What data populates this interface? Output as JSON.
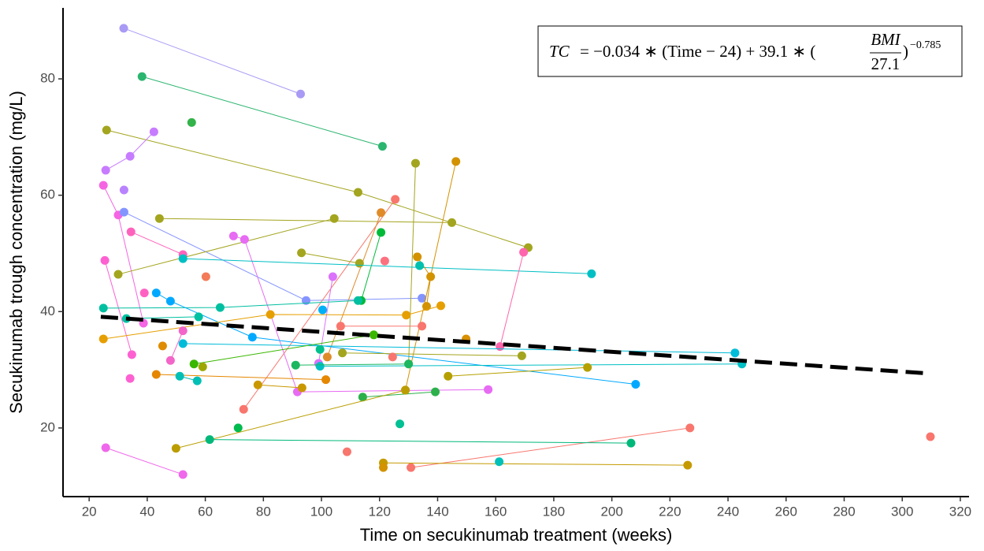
{
  "chart_data": {
    "type": "line",
    "x_label": "Time on secukinumab treatment (weeks)",
    "y_label": "Secukinumab trough concentration (mg/L)",
    "xlim": [
      11,
      323
    ],
    "ylim": [
      8.2,
      92.2
    ],
    "xticks": [
      20,
      40,
      60,
      80,
      100,
      120,
      140,
      160,
      180,
      200,
      220,
      240,
      260,
      280,
      300,
      320
    ],
    "yticks": [
      20,
      40,
      60,
      80
    ],
    "grid": false,
    "annotation": {
      "lhs": "TC",
      "rhs": "= −0.034 ∗ (Time − 24) + 39.1  ∗ (",
      "numerator": "BMI",
      "denominator": "27.1",
      "close": ")",
      "exponent": "−0.785"
    },
    "series": [
      {
        "color": "#a99af5",
        "x": [
          31.9,
          92.8
        ],
        "values": [
          88.7,
          77.4
        ]
      },
      {
        "color": "#2bb56f",
        "x": [
          38.2,
          121.0
        ],
        "values": [
          80.4,
          68.4
        ]
      },
      {
        "color": "#33b34a",
        "x": [
          55.3
        ],
        "values": [
          72.5
        ]
      },
      {
        "color": "#a3a51f",
        "x": [
          26.0,
          112.6,
          171.2
        ],
        "values": [
          71.2,
          60.5,
          51.0
        ]
      },
      {
        "color": "#c77cff",
        "x": [
          25.7,
          34.1,
          42.3
        ],
        "values": [
          64.3,
          66.7,
          70.9
        ]
      },
      {
        "color": "#f564e3",
        "x": [
          24.9,
          30.0,
          38.7
        ],
        "values": [
          61.7,
          56.6,
          38.0
        ]
      },
      {
        "color": "#b983ff",
        "x": [
          32.0
        ],
        "values": [
          60.9
        ]
      },
      {
        "color": "#8494ff",
        "x": [
          32.0,
          94.7,
          134.6
        ],
        "values": [
          57.1,
          41.9,
          42.3
        ]
      },
      {
        "color": "#a3a51f",
        "x": [
          44.2,
          144.9
        ],
        "values": [
          56.0,
          55.3
        ]
      },
      {
        "color": "#a3a51f",
        "x": [
          30.0,
          104.4
        ],
        "values": [
          46.4,
          56.0
        ]
      },
      {
        "color": "#f8766d",
        "x": [
          73.2,
          125.4
        ],
        "values": [
          23.2,
          59.3
        ]
      },
      {
        "color": "#e08b2a",
        "x": [
          102.0,
          120.5
        ],
        "values": [
          32.2,
          57.0
        ]
      },
      {
        "color": "#d39200",
        "x": [
          128.9,
          146.3
        ],
        "values": [
          26.5,
          65.8
        ]
      },
      {
        "color": "#a3a51f",
        "x": [
          130.0,
          132.4
        ],
        "values": [
          31.0,
          65.5
        ]
      },
      {
        "color": "#ff62bc",
        "x": [
          34.4,
          52.3
        ],
        "values": [
          53.7,
          49.8
        ]
      },
      {
        "color": "#00ba38",
        "x": [
          113.7,
          120.5
        ],
        "values": [
          41.9,
          53.6
        ]
      },
      {
        "color": "#e76bf3",
        "x": [
          69.7,
          73.5,
          91.7,
          157.4
        ],
        "values": [
          53.0,
          52.4,
          26.2,
          26.6
        ]
      },
      {
        "color": "#a3a51f",
        "x": [
          93.1,
          113.1
        ],
        "values": [
          50.1,
          48.3
        ]
      },
      {
        "color": "#00bfc4",
        "x": [
          52.3,
          193.0
        ],
        "values": [
          49.1,
          46.5
        ]
      },
      {
        "color": "#fd61d1",
        "x": [
          25.4,
          34.7
        ],
        "values": [
          48.8,
          32.6
        ]
      },
      {
        "color": "#d39200",
        "x": [
          133.0,
          137.6,
          136.2
        ],
        "values": [
          49.4,
          46.0,
          40.9
        ]
      },
      {
        "color": "#ff65ac",
        "x": [
          161.5,
          169.6
        ],
        "values": [
          34.0,
          50.2
        ]
      },
      {
        "color": "#db72fb",
        "x": [
          103.9,
          99.0
        ],
        "values": [
          46.0,
          31.1
        ]
      },
      {
        "color": "#f37b59",
        "x": [
          60.2
        ],
        "values": [
          46.0
        ]
      },
      {
        "color": "#00c0af",
        "x": [
          133.8
        ],
        "values": [
          47.9
        ]
      },
      {
        "color": "#fc717f",
        "x": [
          121.8
        ],
        "values": [
          48.7
        ]
      },
      {
        "color": "#00bfa0",
        "x": [
          24.9,
          65.1,
          112.6
        ],
        "values": [
          40.6,
          40.7,
          41.9
        ]
      },
      {
        "color": "#00a9ff",
        "x": [
          43.1,
          48.0,
          76.2,
          208.2
        ],
        "values": [
          43.2,
          41.8,
          35.6,
          27.5
        ]
      },
      {
        "color": "#ff61c3",
        "x": [
          39.0
        ],
        "values": [
          43.2
        ]
      },
      {
        "color": "#00b0f6",
        "x": [
          100.4
        ],
        "values": [
          40.3
        ]
      },
      {
        "color": "#00c1a3",
        "x": [
          32.8,
          57.7
        ],
        "values": [
          38.8,
          39.1
        ]
      },
      {
        "color": "#e69f00",
        "x": [
          24.9,
          82.4,
          129.2,
          141.1
        ],
        "values": [
          35.3,
          39.5,
          39.4,
          41.0
        ]
      },
      {
        "color": "#f8766d",
        "x": [
          106.6,
          134.6
        ],
        "values": [
          37.5,
          37.5
        ]
      },
      {
        "color": "#00bcd8",
        "x": [
          52.3,
          242.4
        ],
        "values": [
          34.5,
          32.9
        ]
      },
      {
        "color": "#d89000",
        "x": [
          149.8
        ],
        "values": [
          35.3
        ]
      },
      {
        "color": "#de8c00",
        "x": [
          45.3
        ],
        "values": [
          34.1
        ]
      },
      {
        "color": "#f365c8",
        "x": [
          52.3,
          48.0
        ],
        "values": [
          36.7,
          31.6
        ]
      },
      {
        "color": "#00c08b",
        "x": [
          99.5
        ],
        "values": [
          33.5
        ]
      },
      {
        "color": "#39b600",
        "x": [
          56.1,
          118.0
        ],
        "values": [
          31.0,
          36.0
        ]
      },
      {
        "color": "#a3a51f",
        "x": [
          107.2,
          169.0
        ],
        "values": [
          32.9,
          32.4
        ]
      },
      {
        "color": "#00bfc4",
        "x": [
          99.5,
          244.8
        ],
        "values": [
          30.6,
          31.0
        ]
      },
      {
        "color": "#1cb75f",
        "x": [
          91.1,
          130.0
        ],
        "values": [
          30.8,
          31.0
        ]
      },
      {
        "color": "#f8766d",
        "x": [
          124.5
        ],
        "values": [
          32.2
        ]
      },
      {
        "color": "#b5a000",
        "x": [
          143.6,
          191.6
        ],
        "values": [
          28.9,
          30.4
        ]
      },
      {
        "color": "#9da700",
        "x": [
          59.1
        ],
        "values": [
          30.5
        ]
      },
      {
        "color": "#e58700",
        "x": [
          43.1,
          101.5
        ],
        "values": [
          29.2,
          28.3
        ]
      },
      {
        "color": "#00bfb5",
        "x": [
          51.2,
          57.2
        ],
        "values": [
          28.9,
          28.1
        ]
      },
      {
        "color": "#fd61d1",
        "x": [
          34.1
        ],
        "values": [
          28.5
        ]
      },
      {
        "color": "#2cb04b",
        "x": [
          114.2,
          139.2
        ],
        "values": [
          25.3,
          26.2
        ]
      },
      {
        "color": "#c99800",
        "x": [
          78.1,
          93.3
        ],
        "values": [
          27.4,
          26.9
        ]
      },
      {
        "color": "#00c094",
        "x": [
          127.0
        ],
        "values": [
          20.7
        ]
      },
      {
        "color": "#00bb4e",
        "x": [
          71.3
        ],
        "values": [
          20.0
        ]
      },
      {
        "color": "#bb9d00",
        "x": [
          49.9,
          128.9
        ],
        "values": [
          16.5,
          26.5
        ]
      },
      {
        "color": "#f8766d",
        "x": [
          130.8,
          226.9
        ],
        "values": [
          13.2,
          20.0
        ]
      },
      {
        "color": "#f8766d",
        "x": [
          309.7
        ],
        "values": [
          18.5
        ]
      },
      {
        "color": "#f8766d",
        "x": [
          108.8
        ],
        "values": [
          15.9
        ]
      },
      {
        "color": "#00b87a",
        "x": [
          61.5,
          206.6
        ],
        "values": [
          18.0,
          17.4
        ]
      },
      {
        "color": "#c49a00",
        "x": [
          121.3,
          226.1
        ],
        "values": [
          14.0,
          13.6
        ]
      },
      {
        "color": "#00c0b8",
        "x": [
          161.2
        ],
        "values": [
          14.2
        ]
      },
      {
        "color": "#ef67eb",
        "x": [
          25.7,
          52.3
        ],
        "values": [
          16.6,
          12.0
        ]
      },
      {
        "color": "#d39200",
        "x": [
          121.3
        ],
        "values": [
          13.2
        ]
      },
      {
        "color": "#000000",
        "dashed": true,
        "x": [
          24,
          308
        ],
        "values": [
          39.1,
          29.4
        ]
      }
    ]
  }
}
